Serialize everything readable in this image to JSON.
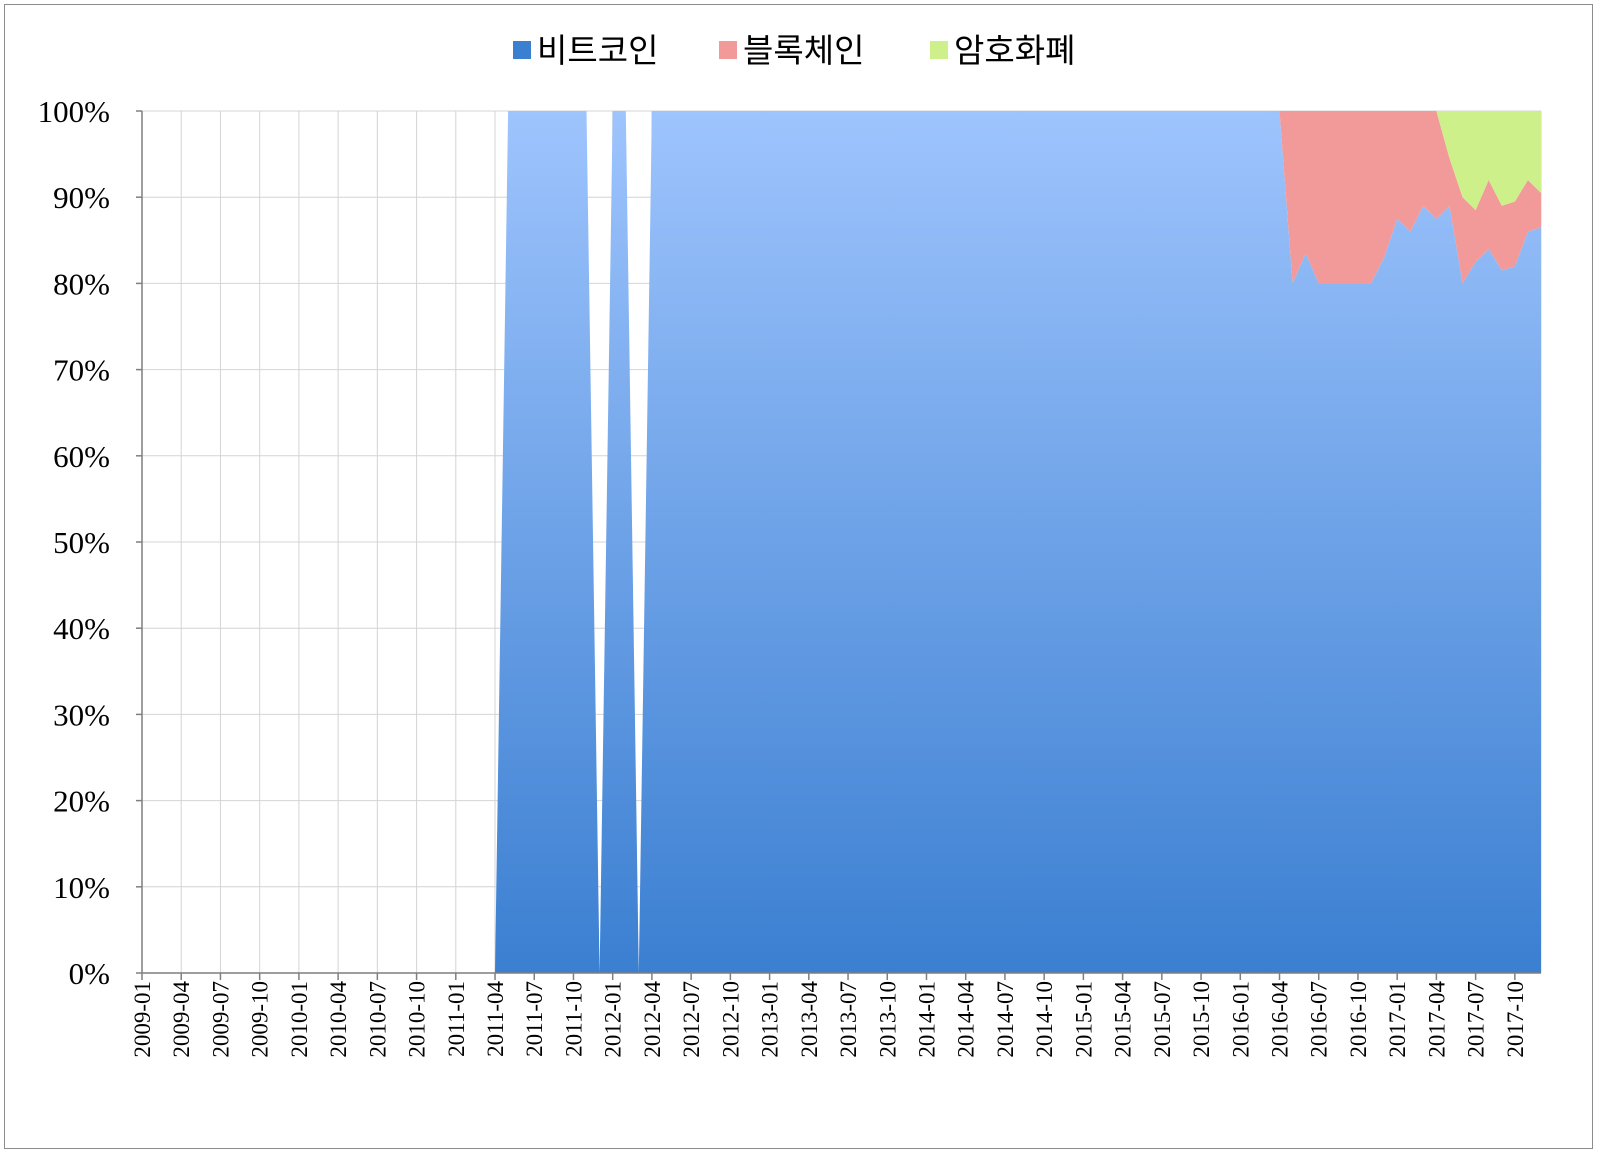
{
  "chart_data": {
    "type": "area",
    "stacked": "percent",
    "title": "",
    "xlabel": "",
    "ylabel": "",
    "ylim": [
      0,
      100
    ],
    "y_ticks": [
      "0%",
      "10%",
      "20%",
      "30%",
      "40%",
      "50%",
      "60%",
      "70%",
      "80%",
      "90%",
      "100%"
    ],
    "x_tick_labels": [
      "2009-01",
      "2009-04",
      "2009-07",
      "2009-10",
      "2010-01",
      "2010-04",
      "2010-07",
      "2010-10",
      "2011-01",
      "2011-04",
      "2011-07",
      "2011-10",
      "2012-01",
      "2012-04",
      "2012-07",
      "2012-10",
      "2013-01",
      "2013-04",
      "2013-07",
      "2013-10",
      "2014-01",
      "2014-04",
      "2014-07",
      "2014-10",
      "2015-01",
      "2015-04",
      "2015-07",
      "2015-10",
      "2016-01",
      "2016-04",
      "2016-07",
      "2016-10",
      "2017-01",
      "2017-04",
      "2017-07",
      "2017-10"
    ],
    "legend_position": "top",
    "grid": true,
    "colors": {
      "bitcoin_top": "#9ec4fd",
      "bitcoin_bottom": "#3b7fd1",
      "blockchain": "#f29a9a",
      "crypto": "#cdf08a"
    },
    "series": [
      {
        "name": "비트코인",
        "points": [
          [
            "2011-04",
            0
          ],
          [
            "2011-05",
            100
          ],
          [
            "2011-06",
            100
          ],
          [
            "2011-07",
            100
          ],
          [
            "2011-08",
            100
          ],
          [
            "2011-09",
            100
          ],
          [
            "2011-10",
            100
          ],
          [
            "2011-11",
            100
          ],
          [
            "2011-12",
            0
          ],
          [
            "2012-01",
            100
          ],
          [
            "2012-02",
            100
          ],
          [
            "2012-03",
            0
          ],
          [
            "2012-04",
            100
          ],
          [
            "2012-05",
            100
          ],
          [
            "2016-04",
            100
          ],
          [
            "2016-05",
            80
          ],
          [
            "2016-06",
            83.5
          ],
          [
            "2016-07",
            80
          ],
          [
            "2016-08",
            80
          ],
          [
            "2016-09",
            80
          ],
          [
            "2016-10",
            80
          ],
          [
            "2016-11",
            80
          ],
          [
            "2016-12",
            83
          ],
          [
            "2017-01",
            87.5
          ],
          [
            "2017-02",
            86
          ],
          [
            "2017-03",
            89
          ],
          [
            "2017-04",
            87.5
          ],
          [
            "2017-05",
            89
          ],
          [
            "2017-06",
            80
          ],
          [
            "2017-07",
            82.5
          ],
          [
            "2017-08",
            84
          ],
          [
            "2017-09",
            81.5
          ],
          [
            "2017-10",
            82
          ],
          [
            "2017-11",
            86
          ],
          [
            "2017-12",
            86.5
          ]
        ]
      },
      {
        "name": "블록체인",
        "points": [
          [
            "2016-04",
            0
          ],
          [
            "2016-05",
            20
          ],
          [
            "2016-06",
            16.5
          ],
          [
            "2016-07",
            20
          ],
          [
            "2016-08",
            20
          ],
          [
            "2016-09",
            20
          ],
          [
            "2016-10",
            20
          ],
          [
            "2016-11",
            20
          ],
          [
            "2016-12",
            17
          ],
          [
            "2017-01",
            12.5
          ],
          [
            "2017-02",
            14
          ],
          [
            "2017-03",
            11
          ],
          [
            "2017-04",
            12.5
          ],
          [
            "2017-05",
            5.5
          ],
          [
            "2017-06",
            10
          ],
          [
            "2017-07",
            6
          ],
          [
            "2017-08",
            8
          ],
          [
            "2017-09",
            7.5
          ],
          [
            "2017-10",
            7.5
          ],
          [
            "2017-11",
            6
          ],
          [
            "2017-12",
            4
          ]
        ]
      },
      {
        "name": "암호화폐",
        "points": [
          [
            "2017-04",
            0
          ],
          [
            "2017-05",
            5.5
          ],
          [
            "2017-06",
            10
          ],
          [
            "2017-07",
            11.5
          ],
          [
            "2017-08",
            8
          ],
          [
            "2017-09",
            11
          ],
          [
            "2017-10",
            10.5
          ],
          [
            "2017-11",
            8
          ],
          [
            "2017-12",
            9.5
          ]
        ]
      }
    ]
  }
}
